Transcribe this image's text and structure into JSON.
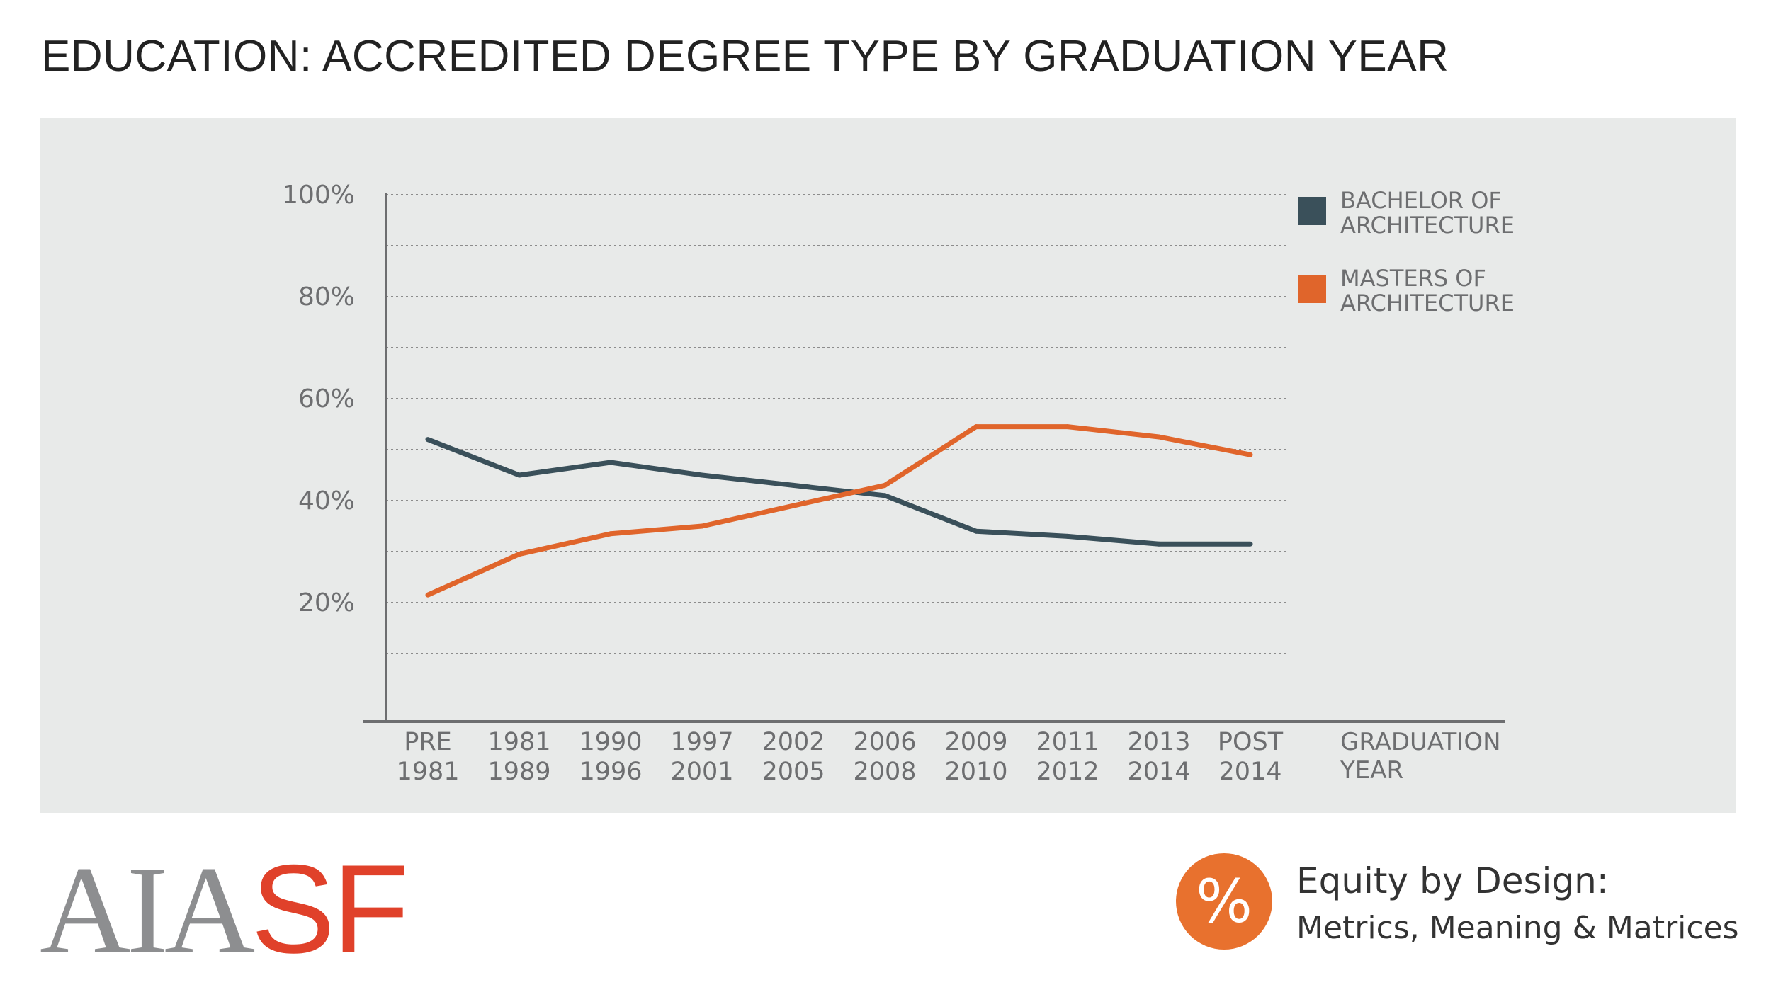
{
  "title": "EDUCATION: ACCREDITED DEGREE TYPE BY GRADUATION YEAR",
  "colors": {
    "bachelor": "#3a505a",
    "masters": "#e0652b",
    "panel": "#e8eae9",
    "grid": "#8c8c8c",
    "axis": "#6d6e70"
  },
  "chart_data": {
    "type": "line",
    "title": "EDUCATION: ACCREDITED DEGREE TYPE BY GRADUATION YEAR",
    "xlabel": "GRADUATION YEAR",
    "xlabel_lines": [
      "GRADUATION",
      "YEAR"
    ],
    "ylabel": "",
    "ylim": [
      0,
      100
    ],
    "yticks": [
      20,
      40,
      60,
      80,
      100
    ],
    "ytick_labels": [
      "20%",
      "40%",
      "60%",
      "80%",
      "100%"
    ],
    "gridlines": [
      10,
      20,
      30,
      40,
      50,
      60,
      70,
      80,
      90,
      100
    ],
    "grid": true,
    "legend_position": "top-right",
    "categories": [
      [
        "PRE",
        "1981"
      ],
      [
        "1981",
        "1989"
      ],
      [
        "1990",
        "1996"
      ],
      [
        "1997",
        "2001"
      ],
      [
        "2002",
        "2005"
      ],
      [
        "2006",
        "2008"
      ],
      [
        "2009",
        "2010"
      ],
      [
        "2011",
        "2012"
      ],
      [
        "2013",
        "2014"
      ],
      [
        "POST",
        "2014"
      ]
    ],
    "series": [
      {
        "name": "BACHELOR OF ARCHITECTURE",
        "name_lines": [
          "BACHELOR OF",
          "ARCHITECTURE"
        ],
        "color": "#3a505a",
        "values": [
          52,
          45,
          47.5,
          45,
          43,
          41,
          34,
          33,
          31.5,
          31.5
        ]
      },
      {
        "name": "MASTERS OF ARCHITECTURE",
        "name_lines": [
          "MASTERS OF",
          "ARCHITECTURE"
        ],
        "color": "#e0652b",
        "values": [
          21.5,
          29.5,
          33.5,
          35,
          39,
          43,
          54.5,
          54.5,
          52.5,
          49
        ]
      }
    ]
  },
  "logo": {
    "aia": "AIA",
    "sf": "SF"
  },
  "tagline": {
    "symbol": "%",
    "line1": "Equity by Design:",
    "line2": "Metrics, Meaning & Matrices"
  }
}
